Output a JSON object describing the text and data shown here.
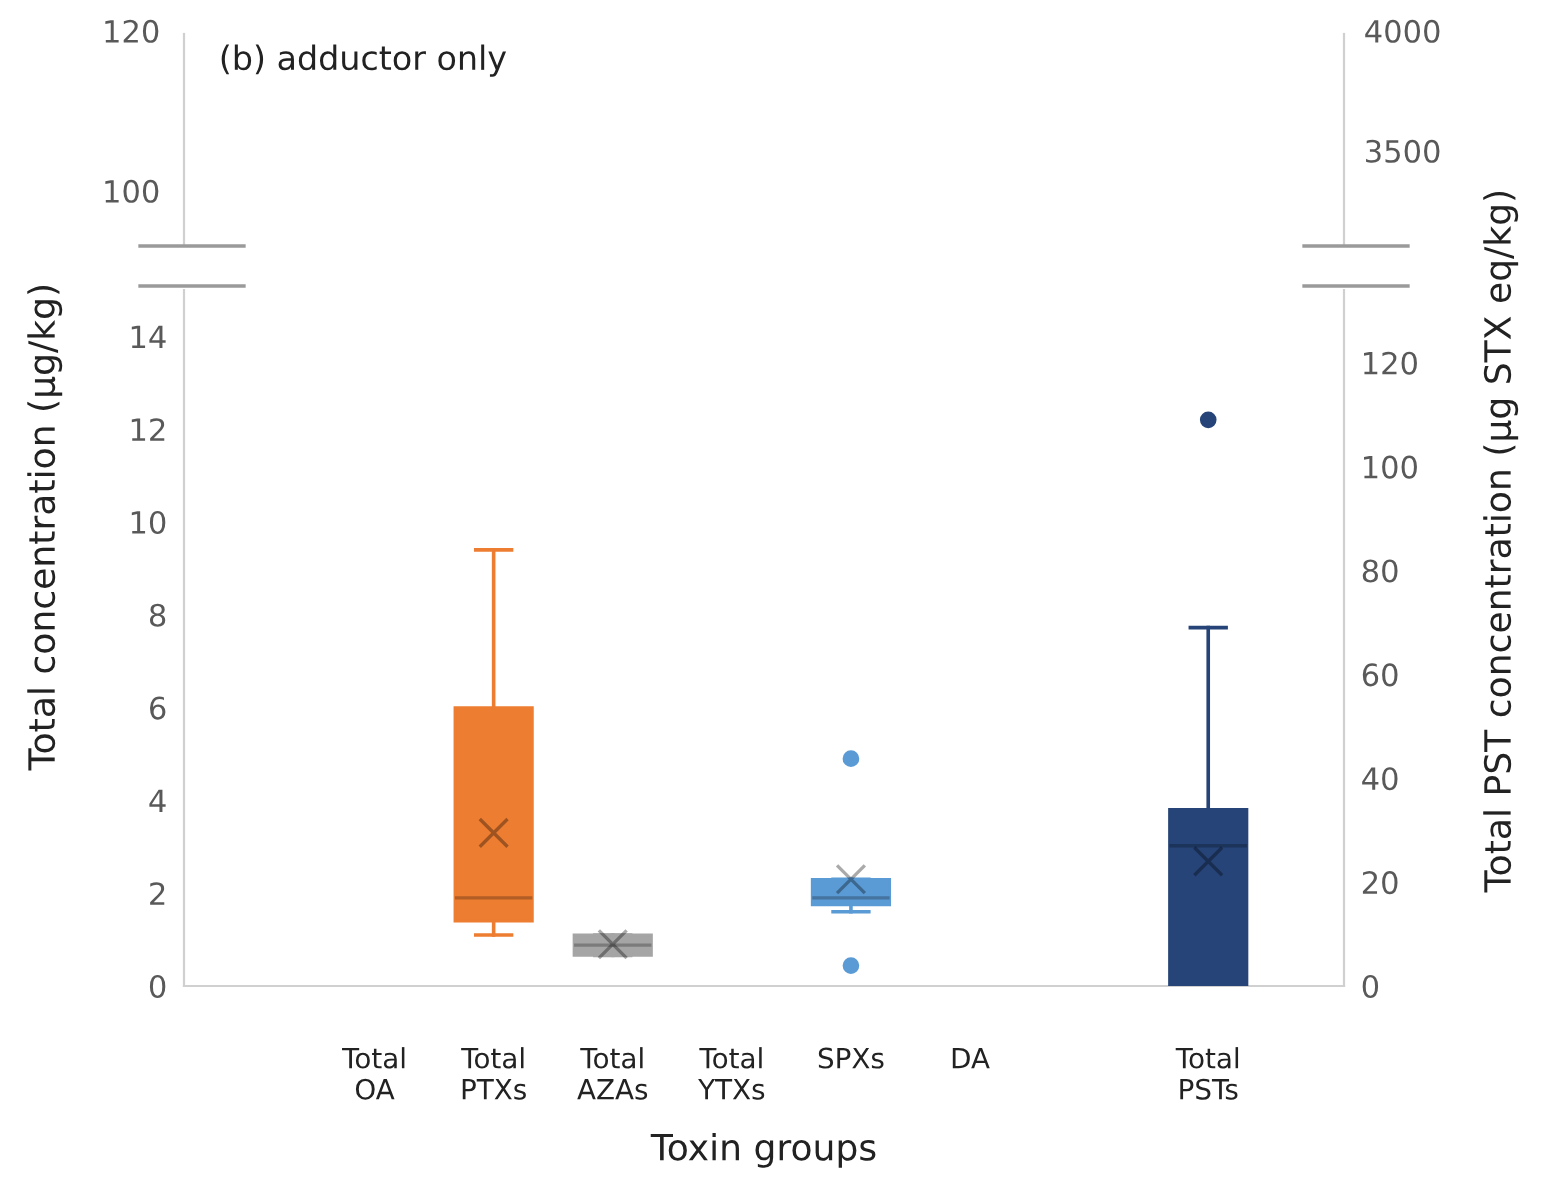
{
  "chart_data": [
    {
      "type": "other",
      "title": "(b) adductor only",
      "annotations": [
        "120",
        "100",
        "4000",
        "3500"
      ]
    },
    {
      "type": "box",
      "categories": [
        "Total\nOA",
        "Total\nPTXs",
        "Total\nAZAs",
        "Total\nYTXs",
        "SPXs",
        "DA",
        null,
        "Total\nPSTs"
      ],
      "xlabel": "Toxin groups",
      "ylabel": "Total concentration (µg/kg)",
      "y2label": "Total PST concentration (µg STX eq/kg)",
      "ylim": [
        0,
        15
      ],
      "yticks": [
        0,
        2,
        4,
        6,
        8,
        10,
        12,
        14
      ],
      "y2lim": [
        0,
        134
      ],
      "y2ticks": [
        0,
        20,
        40,
        60,
        80,
        100,
        120
      ],
      "grid": false,
      "series": [
        {
          "axis": "y",
          "colors": [
            null,
            "#ed7d31",
            "#a5a5a5",
            null,
            "#5b9bd5",
            null,
            null,
            null
          ],
          "boxes": [
            null,
            {
              "low": 1.1,
              "q1": 1.4,
              "median": 1.9,
              "q3": 6.0,
              "high": 9.4,
              "mean": 3.3
            },
            {
              "low": 0.66,
              "q1": 0.66,
              "median": 0.88,
              "q3": 1.1,
              "high": 1.1,
              "mean": 0.9
            },
            null,
            {
              "low": 1.6,
              "q1": 1.75,
              "median": 1.9,
              "q3": 2.3,
              "high": 2.3,
              "mean": 2.3,
              "outliers": [
                4.9,
                0.44
              ]
            },
            null,
            null,
            null
          ]
        },
        {
          "axis": "y2",
          "colors": [
            null,
            null,
            null,
            null,
            null,
            null,
            null,
            "#264478"
          ],
          "boxes": [
            null,
            null,
            null,
            null,
            null,
            null,
            null,
            {
              "low": 0,
              "q1": 0,
              "median": 27,
              "q3": 34,
              "high": 69,
              "mean": 24,
              "outliers": [
                109
              ]
            }
          ]
        }
      ]
    }
  ]
}
